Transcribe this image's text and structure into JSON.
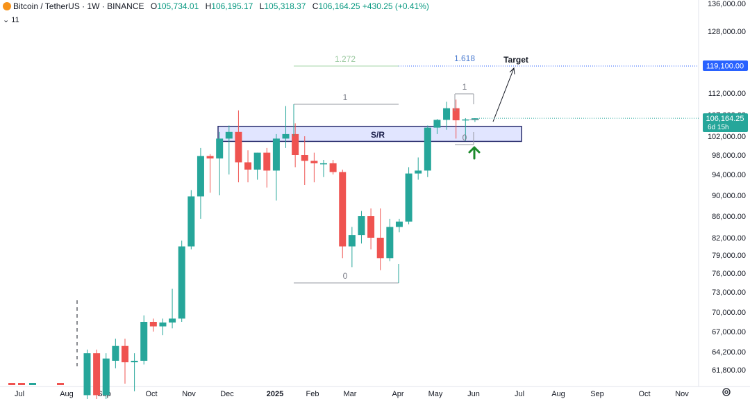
{
  "header": {
    "symbol": "Bitcoin / TetherUS · 1W · BINANCE",
    "o_label": "O",
    "o_value": "105,734.01",
    "h_label": "H",
    "h_value": "106,195.17",
    "l_label": "L",
    "l_value": "105,318.37",
    "c_label": "C",
    "c_value": "106,164.25",
    "change": "+430.25 (+0.41%)",
    "indicator_toggle": "⌄ 11"
  },
  "colors": {
    "up": "#26a69a",
    "down": "#ef5350",
    "zone_fill": "#c9cfff",
    "zone_border": "#2a2e6e",
    "price_tag": "#26a69a",
    "target_tag": "#2962ff"
  },
  "icons": {
    "logo": "bitcoin-logo-icon",
    "settings": "gear-icon",
    "arrow": "green-up-arrow-icon"
  },
  "chart_data": {
    "type": "candlestick",
    "y_axis_ticks": [
      "136,000.00",
      "128,000.00",
      "112,000.00",
      "107,000.00",
      "102,000.00",
      "98,000.00",
      "94,000.00",
      "90,000.00",
      "86,000.00",
      "82,000.00",
      "79,000.00",
      "76,000.00",
      "73,000.00",
      "70,000.00",
      "67,000.00",
      "64,200.00",
      "61,800.00"
    ],
    "x_axis_ticks": [
      "Jul",
      "Aug",
      "Sep",
      "Oct",
      "Nov",
      "Dec",
      "2025",
      "Feb",
      "Mar",
      "Apr",
      "May",
      "Jun",
      "Jul",
      "Aug",
      "Sep",
      "Oct",
      "Nov"
    ],
    "price_label": "106,164.25",
    "countdown": "6d 15h",
    "target_price": "119,100.00",
    "annotations": {
      "sr_zone": "S/R",
      "target": "Target",
      "fib_1272": "1.272",
      "fib_1618": "1.618",
      "fib_a_1": "1",
      "fib_a_0": "0",
      "fib_b_1": "1",
      "fib_b_0": "0"
    },
    "candles": [
      {
        "o": 58500,
        "h": 64500,
        "l": 57500,
        "c": 64000
      },
      {
        "o": 64000,
        "h": 64500,
        "l": 57000,
        "c": 58500
      },
      {
        "o": 58500,
        "h": 64000,
        "l": 57000,
        "c": 63300
      },
      {
        "o": 63000,
        "h": 66000,
        "l": 62000,
        "c": 65000
      },
      {
        "o": 65000,
        "h": 66000,
        "l": 60000,
        "c": 62800
      },
      {
        "o": 62800,
        "h": 64000,
        "l": 59000,
        "c": 63000
      },
      {
        "o": 63000,
        "h": 69500,
        "l": 62500,
        "c": 68500
      },
      {
        "o": 68500,
        "h": 69000,
        "l": 67000,
        "c": 67800
      },
      {
        "o": 67800,
        "h": 69000,
        "l": 66500,
        "c": 68400
      },
      {
        "o": 68400,
        "h": 73500,
        "l": 67500,
        "c": 69000
      },
      {
        "o": 69000,
        "h": 81500,
        "l": 68500,
        "c": 80500
      },
      {
        "o": 80500,
        "h": 91000,
        "l": 80000,
        "c": 89800
      },
      {
        "o": 89800,
        "h": 99500,
        "l": 85500,
        "c": 97800
      },
      {
        "o": 97800,
        "h": 98200,
        "l": 90500,
        "c": 97300
      },
      {
        "o": 97300,
        "h": 103000,
        "l": 90000,
        "c": 101500
      },
      {
        "o": 101500,
        "h": 104500,
        "l": 94000,
        "c": 103000
      },
      {
        "o": 103000,
        "h": 108000,
        "l": 92500,
        "c": 96500
      },
      {
        "o": 96500,
        "h": 99000,
        "l": 92500,
        "c": 95000
      },
      {
        "o": 95000,
        "h": 98500,
        "l": 93000,
        "c": 98500
      },
      {
        "o": 98500,
        "h": 99500,
        "l": 91500,
        "c": 94800
      },
      {
        "o": 94800,
        "h": 102500,
        "l": 89000,
        "c": 101500
      },
      {
        "o": 101500,
        "h": 109000,
        "l": 99500,
        "c": 102500
      },
      {
        "o": 102500,
        "h": 105000,
        "l": 95500,
        "c": 98000
      },
      {
        "o": 98000,
        "h": 102000,
        "l": 92000,
        "c": 96800
      },
      {
        "o": 96800,
        "h": 98500,
        "l": 92500,
        "c": 96300
      },
      {
        "o": 96300,
        "h": 97000,
        "l": 93500,
        "c": 96300
      },
      {
        "o": 96300,
        "h": 97000,
        "l": 94000,
        "c": 94500
      },
      {
        "o": 94500,
        "h": 95000,
        "l": 78500,
        "c": 80500
      },
      {
        "o": 80500,
        "h": 84000,
        "l": 77000,
        "c": 82500
      },
      {
        "o": 82500,
        "h": 87000,
        "l": 81000,
        "c": 86000
      },
      {
        "o": 86000,
        "h": 87500,
        "l": 80000,
        "c": 82000
      },
      {
        "o": 82000,
        "h": 87500,
        "l": 76500,
        "c": 78500
      },
      {
        "o": 78500,
        "h": 85500,
        "l": 78000,
        "c": 84000
      },
      {
        "o": 84000,
        "h": 85500,
        "l": 83000,
        "c": 85000
      },
      {
        "o": 85000,
        "h": 95500,
        "l": 84500,
        "c": 94200
      },
      {
        "o": 94200,
        "h": 97500,
        "l": 93000,
        "c": 94800
      },
      {
        "o": 94800,
        "h": 104500,
        "l": 93500,
        "c": 104000
      },
      {
        "o": 104000,
        "h": 106000,
        "l": 102500,
        "c": 105800
      },
      {
        "o": 105800,
        "h": 110000,
        "l": 103500,
        "c": 108500
      },
      {
        "o": 108500,
        "h": 110500,
        "l": 101500,
        "c": 105700
      },
      {
        "o": 105700,
        "h": 106200,
        "l": 101000,
        "c": 105900
      },
      {
        "o": 105734,
        "h": 106195,
        "l": 105318,
        "c": 106164
      }
    ]
  }
}
